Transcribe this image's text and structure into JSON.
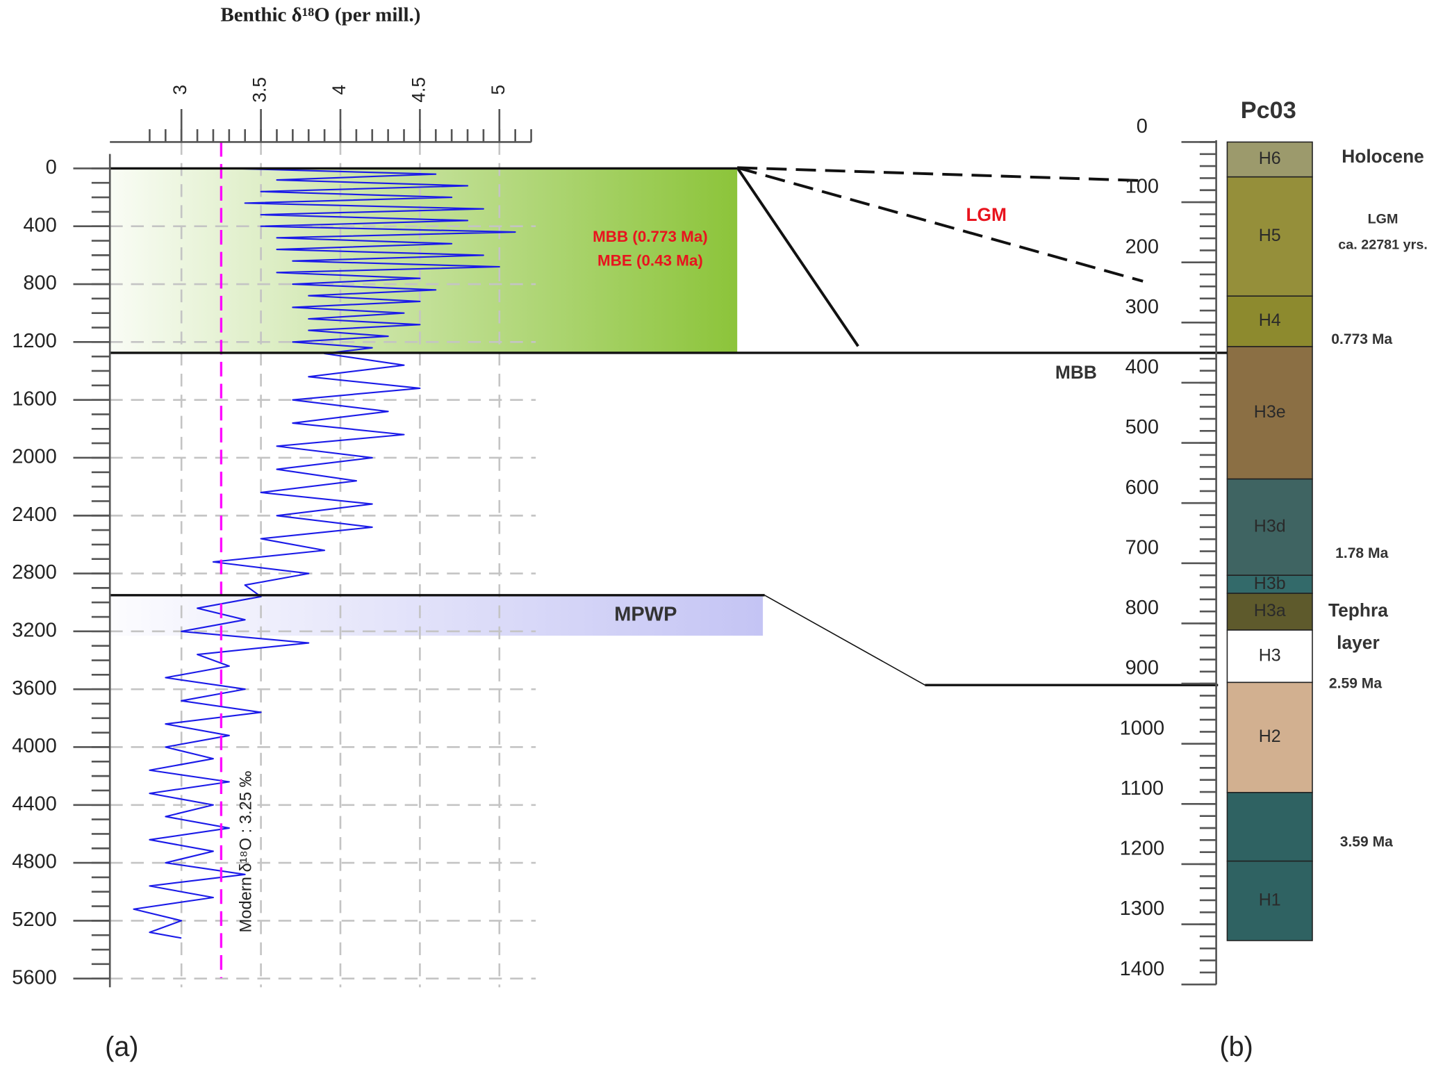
{
  "chart_data": [
    {
      "type": "line",
      "title": "Benthic δ¹⁸O (per mill.)",
      "panel_label": "(a)",
      "x": [
        0,
        40,
        80,
        120,
        160,
        200,
        240,
        280,
        320,
        360,
        400,
        440,
        480,
        520,
        560,
        600,
        640,
        680,
        720,
        760,
        800,
        840,
        880,
        920,
        960,
        1000,
        1040,
        1080,
        1120,
        1160,
        1200,
        1240,
        1280,
        1360,
        1440,
        1520,
        1600,
        1680,
        1760,
        1840,
        1920,
        2000,
        2080,
        2160,
        2240,
        2320,
        2400,
        2480,
        2560,
        2640,
        2720,
        2800,
        2880,
        2960,
        3040,
        3120,
        3200,
        3280,
        3360,
        3440,
        3520,
        3600,
        3680,
        3760,
        3840,
        3920,
        4000,
        4080,
        4160,
        4240,
        4320,
        4400,
        4480,
        4560,
        4640,
        4720,
        4800,
        4880,
        4960,
        5040,
        5120,
        5200,
        5280,
        5320
      ],
      "series": [
        {
          "color": "#1a1ae8",
          "values": [
            3.3,
            4.6,
            3.6,
            4.8,
            3.5,
            4.7,
            3.4,
            4.9,
            3.5,
            4.8,
            3.5,
            5.1,
            3.6,
            4.7,
            3.6,
            4.9,
            3.7,
            5.0,
            3.6,
            4.5,
            3.7,
            4.6,
            3.8,
            4.5,
            3.7,
            4.4,
            3.8,
            4.5,
            3.8,
            4.3,
            3.7,
            4.2,
            3.9,
            4.4,
            3.8,
            4.5,
            3.7,
            4.3,
            3.7,
            4.4,
            3.6,
            4.2,
            3.6,
            4.1,
            3.5,
            4.2,
            3.6,
            4.2,
            3.5,
            3.9,
            3.2,
            3.8,
            3.4,
            3.5,
            3.1,
            3.4,
            3.0,
            3.8,
            3.1,
            3.3,
            2.9,
            3.4,
            3.0,
            3.5,
            2.9,
            3.3,
            2.9,
            3.2,
            2.8,
            3.3,
            2.8,
            3.2,
            2.9,
            3.3,
            2.8,
            3.2,
            2.9,
            3.4,
            2.8,
            3.2,
            2.7,
            3.0,
            2.8,
            3.0
          ]
        }
      ],
      "xlim": [
        -100,
        5660
      ],
      "xticks": [
        0,
        400,
        800,
        1200,
        1600,
        2000,
        2400,
        2800,
        3200,
        3600,
        4000,
        4400,
        4800,
        5200,
        5600
      ],
      "ylim": [
        2.55,
        5.2
      ],
      "yticks": [
        3,
        3.5,
        4,
        4.5,
        5
      ],
      "grid": true,
      "reference_line": {
        "value": 3.25,
        "label": "Modern δ¹⁸O : 3.25 ‰",
        "color": "#ff00ff"
      },
      "bands": [
        {
          "from": 0,
          "to": 1275,
          "color": "#8cc43a",
          "label_color": "#e8141e",
          "labels": [
            "MBB (0.773 Ma)",
            "MBE (0.43 Ma)"
          ]
        },
        {
          "from": 2950,
          "to": 3230,
          "color": "#c4c4f4",
          "label_color": "#333333",
          "labels": [
            "MPWP"
          ]
        }
      ]
    },
    {
      "type": "column",
      "title": "Pc03",
      "panel_label": "(b)",
      "ylim": [
        0,
        1400
      ],
      "yticks": [
        0,
        100,
        200,
        300,
        400,
        500,
        600,
        700,
        800,
        900,
        1000,
        1100,
        1200,
        1300,
        1400
      ],
      "layers": [
        {
          "label": "H6",
          "top": 0,
          "bottom": 58,
          "color": "#9c9a6c"
        },
        {
          "label": "H5",
          "top": 58,
          "bottom": 256,
          "color": "#958f3a"
        },
        {
          "label": "H4",
          "top": 256,
          "bottom": 340,
          "color": "#8d8a2e"
        },
        {
          "label": "H3e",
          "top": 340,
          "bottom": 560,
          "color": "#8b6f44"
        },
        {
          "label": "H3d",
          "top": 560,
          "bottom": 720,
          "color": "#3f6462"
        },
        {
          "label": "H3b",
          "top": 720,
          "bottom": 750,
          "color": "#336a6a"
        },
        {
          "label": "H3a",
          "top": 750,
          "bottom": 811,
          "color": "#5e5a2c"
        },
        {
          "label": "H3",
          "top": 811,
          "bottom": 898,
          "color": "#ffffff"
        },
        {
          "label": "H2",
          "top": 898,
          "bottom": 1081,
          "color": "#d2b090"
        },
        {
          "label": null,
          "top": 1081,
          "bottom": 1195,
          "color": "#2f6262"
        },
        {
          "label": "H1",
          "top": 1195,
          "bottom": 1327,
          "color": "#2f6262"
        }
      ],
      "annotations": [
        "Holocene",
        "LGM",
        "ca. 22781 yrs.",
        "0.773 Ma",
        "1.78 Ma",
        "Tephra",
        "layer",
        "2.59 Ma",
        "3.59 Ma"
      ],
      "correlation_labels": [
        "LGM",
        "MBB"
      ]
    }
  ]
}
